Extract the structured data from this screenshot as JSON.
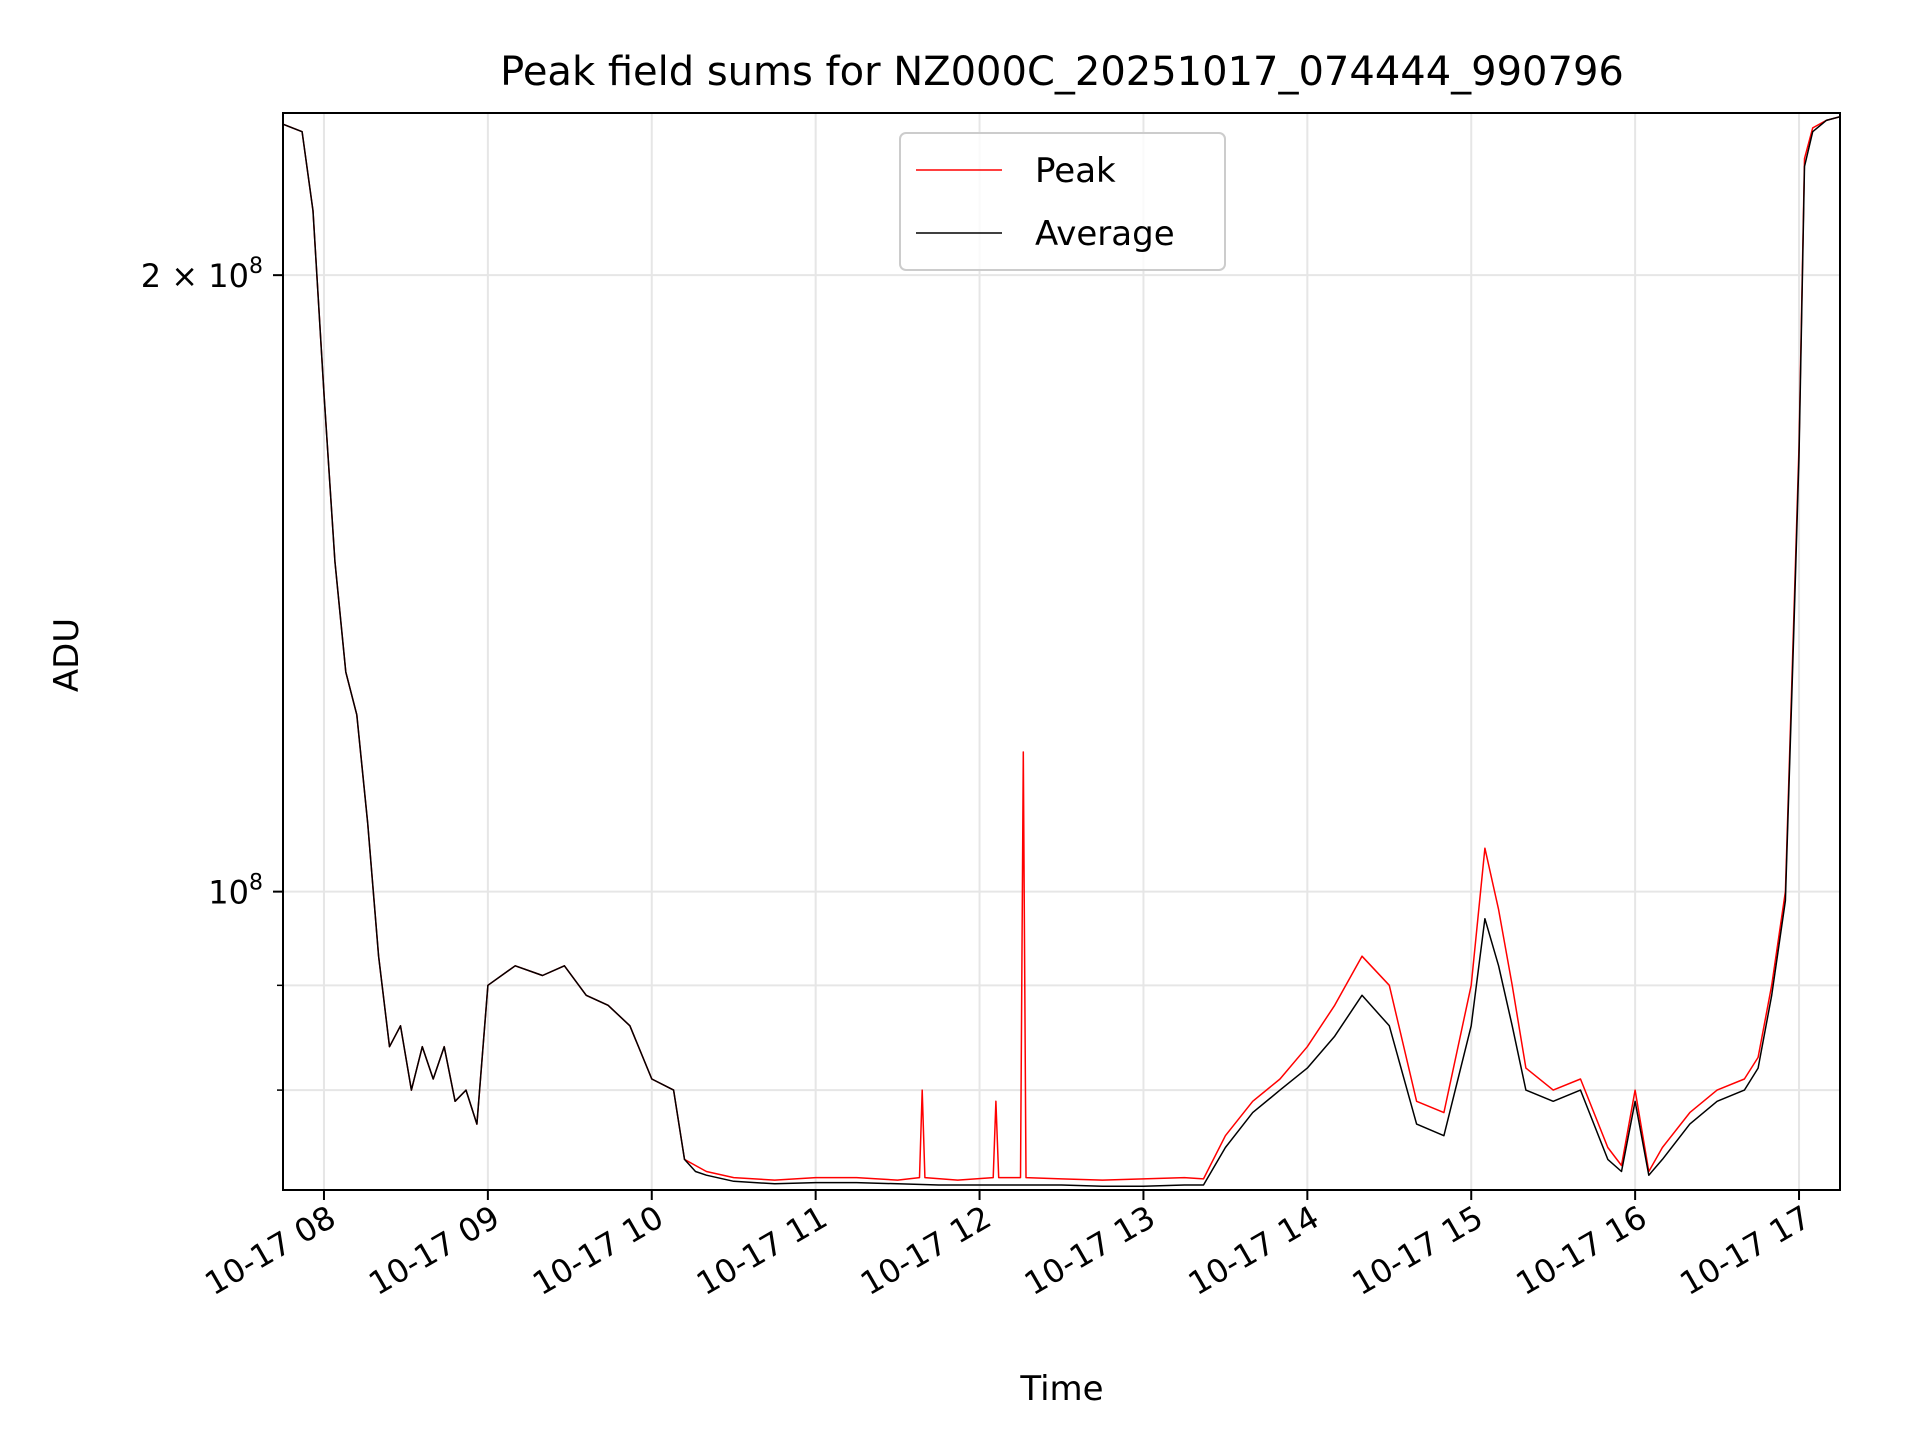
{
  "chart_data": {
    "type": "line",
    "title": "Peak field sums for NZ000C_20251017_074444_990796",
    "xlabel": "Time",
    "ylabel": "ADU",
    "yscale": "log",
    "ylim": [
      71500000,
      240000000
    ],
    "xlim": [
      "2025-10-17 07:45",
      "2025-10-17 17:15"
    ],
    "x_tick_labels": [
      "10-17 08",
      "10-17 09",
      "10-17 10",
      "10-17 11",
      "10-17 12",
      "10-17 13",
      "10-17 14",
      "10-17 15",
      "10-17 16",
      "10-17 17"
    ],
    "x_ticks": [
      "2025-10-17 08:00",
      "2025-10-17 09:00",
      "2025-10-17 10:00",
      "2025-10-17 11:00",
      "2025-10-17 12:00",
      "2025-10-17 13:00",
      "2025-10-17 14:00",
      "2025-10-17 15:00",
      "2025-10-17 16:00",
      "2025-10-17 17:00"
    ],
    "y_major_ticks": [
      {
        "value": 100000000,
        "label_base": "10",
        "label_exp": "8",
        "label_coeff": ""
      },
      {
        "value": 200000000,
        "label_base": "10",
        "label_exp": "8",
        "label_coeff": "2 × "
      }
    ],
    "y_minor_ticks": [
      80000000,
      90000000
    ],
    "grid": true,
    "legend_position": "top-center",
    "series": [
      {
        "name": "Peak",
        "color": "#ff0000",
        "x": [
          "2025-10-17 07:45",
          "2025-10-17 07:52",
          "2025-10-17 07:56",
          "2025-10-17 08:00",
          "2025-10-17 08:04",
          "2025-10-17 08:08",
          "2025-10-17 08:12",
          "2025-10-17 08:16",
          "2025-10-17 08:20",
          "2025-10-17 08:24",
          "2025-10-17 08:28",
          "2025-10-17 08:32",
          "2025-10-17 08:36",
          "2025-10-17 08:40",
          "2025-10-17 08:44",
          "2025-10-17 08:48",
          "2025-10-17 08:52",
          "2025-10-17 08:56",
          "2025-10-17 09:00",
          "2025-10-17 09:10",
          "2025-10-17 09:20",
          "2025-10-17 09:28",
          "2025-10-17 09:36",
          "2025-10-17 09:44",
          "2025-10-17 09:52",
          "2025-10-17 10:00",
          "2025-10-17 10:08",
          "2025-10-17 10:12",
          "2025-10-17 10:16",
          "2025-10-17 10:20",
          "2025-10-17 10:30",
          "2025-10-17 10:45",
          "2025-10-17 11:00",
          "2025-10-17 11:15",
          "2025-10-17 11:30",
          "2025-10-17 11:38",
          "2025-10-17 11:39",
          "2025-10-17 11:40",
          "2025-10-17 11:52",
          "2025-10-17 12:05",
          "2025-10-17 12:06",
          "2025-10-17 12:07",
          "2025-10-17 12:15",
          "2025-10-17 12:16",
          "2025-10-17 12:17",
          "2025-10-17 12:30",
          "2025-10-17 12:45",
          "2025-10-17 13:00",
          "2025-10-17 13:15",
          "2025-10-17 13:22",
          "2025-10-17 13:30",
          "2025-10-17 13:40",
          "2025-10-17 13:50",
          "2025-10-17 14:00",
          "2025-10-17 14:10",
          "2025-10-17 14:20",
          "2025-10-17 14:30",
          "2025-10-17 14:40",
          "2025-10-17 14:50",
          "2025-10-17 15:00",
          "2025-10-17 15:05",
          "2025-10-17 15:10",
          "2025-10-17 15:15",
          "2025-10-17 15:20",
          "2025-10-17 15:30",
          "2025-10-17 15:40",
          "2025-10-17 15:50",
          "2025-10-17 15:55",
          "2025-10-17 16:00",
          "2025-10-17 16:05",
          "2025-10-17 16:10",
          "2025-10-17 16:20",
          "2025-10-17 16:30",
          "2025-10-17 16:40",
          "2025-10-17 16:45",
          "2025-10-17 16:50",
          "2025-10-17 16:55",
          "2025-10-17 16:58",
          "2025-10-17 17:00",
          "2025-10-17 17:02",
          "2025-10-17 17:05",
          "2025-10-17 17:10",
          "2025-10-17 17:15"
        ],
        "y": [
          237000000,
          235000000,
          215000000,
          175000000,
          145000000,
          128000000,
          122000000,
          108000000,
          93000000,
          84000000,
          86000000,
          80000000,
          84000000,
          81000000,
          84000000,
          79000000,
          80000000,
          77000000,
          90000000,
          92000000,
          91000000,
          92000000,
          89000000,
          88000000,
          86000000,
          81000000,
          80000000,
          74000000,
          73500000,
          73000000,
          72500000,
          72300000,
          72500000,
          72500000,
          72300000,
          72500000,
          80000000,
          72500000,
          72300000,
          72500000,
          79000000,
          72500000,
          72500000,
          117000000,
          72500000,
          72400000,
          72300000,
          72400000,
          72500000,
          72400000,
          76000000,
          79000000,
          81000000,
          84000000,
          88000000,
          93000000,
          90000000,
          79000000,
          78000000,
          90000000,
          105000000,
          98000000,
          90000000,
          82000000,
          80000000,
          81000000,
          75000000,
          73500000,
          80000000,
          73000000,
          75000000,
          78000000,
          80000000,
          81000000,
          83000000,
          90000000,
          100000000,
          135000000,
          165000000,
          228000000,
          236000000,
          238000000,
          239000000
        ]
      },
      {
        "name": "Average",
        "color": "#000000",
        "x": [
          "2025-10-17 07:45",
          "2025-10-17 07:52",
          "2025-10-17 07:56",
          "2025-10-17 08:00",
          "2025-10-17 08:04",
          "2025-10-17 08:08",
          "2025-10-17 08:12",
          "2025-10-17 08:16",
          "2025-10-17 08:20",
          "2025-10-17 08:24",
          "2025-10-17 08:28",
          "2025-10-17 08:32",
          "2025-10-17 08:36",
          "2025-10-17 08:40",
          "2025-10-17 08:44",
          "2025-10-17 08:48",
          "2025-10-17 08:52",
          "2025-10-17 08:56",
          "2025-10-17 09:00",
          "2025-10-17 09:10",
          "2025-10-17 09:20",
          "2025-10-17 09:28",
          "2025-10-17 09:36",
          "2025-10-17 09:44",
          "2025-10-17 09:52",
          "2025-10-17 10:00",
          "2025-10-17 10:08",
          "2025-10-17 10:12",
          "2025-10-17 10:16",
          "2025-10-17 10:20",
          "2025-10-17 10:30",
          "2025-10-17 10:45",
          "2025-10-17 11:00",
          "2025-10-17 11:15",
          "2025-10-17 11:30",
          "2025-10-17 11:45",
          "2025-10-17 12:00",
          "2025-10-17 12:15",
          "2025-10-17 12:30",
          "2025-10-17 12:45",
          "2025-10-17 13:00",
          "2025-10-17 13:15",
          "2025-10-17 13:22",
          "2025-10-17 13:30",
          "2025-10-17 13:40",
          "2025-10-17 13:50",
          "2025-10-17 14:00",
          "2025-10-17 14:10",
          "2025-10-17 14:20",
          "2025-10-17 14:30",
          "2025-10-17 14:40",
          "2025-10-17 14:50",
          "2025-10-17 15:00",
          "2025-10-17 15:05",
          "2025-10-17 15:10",
          "2025-10-17 15:15",
          "2025-10-17 15:20",
          "2025-10-17 15:30",
          "2025-10-17 15:40",
          "2025-10-17 15:50",
          "2025-10-17 15:55",
          "2025-10-17 16:00",
          "2025-10-17 16:05",
          "2025-10-17 16:10",
          "2025-10-17 16:20",
          "2025-10-17 16:30",
          "2025-10-17 16:40",
          "2025-10-17 16:45",
          "2025-10-17 16:50",
          "2025-10-17 16:55",
          "2025-10-17 16:58",
          "2025-10-17 17:00",
          "2025-10-17 17:02",
          "2025-10-17 17:05",
          "2025-10-17 17:10",
          "2025-10-17 17:15"
        ],
        "y": [
          237000000,
          235000000,
          215000000,
          175000000,
          145000000,
          128000000,
          122000000,
          108000000,
          93000000,
          84000000,
          86000000,
          80000000,
          84000000,
          81000000,
          84000000,
          79000000,
          80000000,
          77000000,
          90000000,
          92000000,
          91000000,
          92000000,
          89000000,
          88000000,
          86000000,
          81000000,
          80000000,
          74000000,
          73000000,
          72700000,
          72200000,
          72000000,
          72100000,
          72100000,
          72000000,
          71900000,
          71900000,
          71900000,
          71900000,
          71800000,
          71800000,
          71900000,
          71900000,
          75000000,
          78000000,
          80000000,
          82000000,
          85000000,
          89000000,
          86000000,
          77000000,
          76000000,
          86000000,
          97000000,
          92000000,
          86000000,
          80000000,
          79000000,
          80000000,
          74000000,
          73000000,
          79000000,
          72700000,
          74000000,
          77000000,
          79000000,
          80000000,
          82000000,
          89000000,
          99000000,
          133000000,
          163000000,
          226000000,
          235000000,
          238000000,
          239000000
        ]
      }
    ]
  }
}
